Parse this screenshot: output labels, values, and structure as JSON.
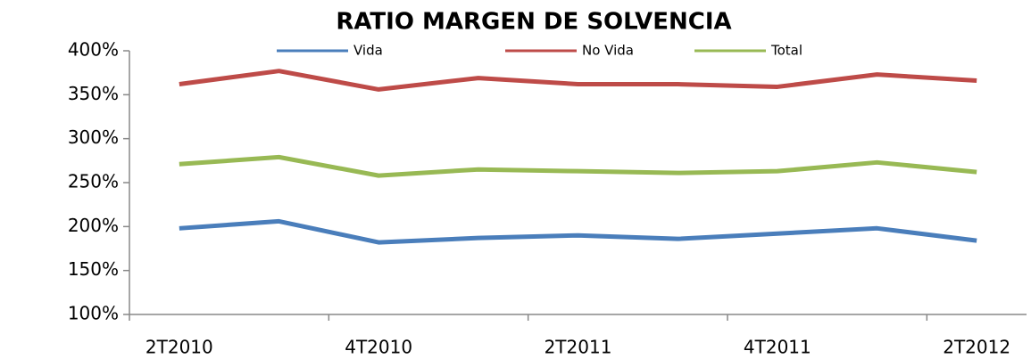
{
  "chart_data": {
    "type": "line",
    "title": "RATIO MARGEN DE SOLVENCIA",
    "categories": [
      "2T2010",
      null,
      "4T2010",
      null,
      "2T2011",
      null,
      "4T2011",
      null,
      "2T2012"
    ],
    "series": [
      {
        "name": "Vida",
        "color": "#4a7ebb",
        "values": [
          198,
          206,
          182,
          187,
          190,
          186,
          192,
          198,
          184
        ]
      },
      {
        "name": "No Vida",
        "color": "#be4b48",
        "values": [
          362,
          377,
          356,
          369,
          362,
          362,
          359,
          373,
          366
        ]
      },
      {
        "name": "Total",
        "color": "#98b954",
        "values": [
          271,
          279,
          258,
          265,
          263,
          261,
          263,
          273,
          262
        ]
      }
    ],
    "ylim": [
      100,
      400
    ],
    "yticks": [
      {
        "value": 100,
        "label": "100%"
      },
      {
        "value": 150,
        "label": "150%"
      },
      {
        "value": 200,
        "label": "200%"
      },
      {
        "value": 250,
        "label": "250%"
      },
      {
        "value": 300,
        "label": "300%"
      },
      {
        "value": 350,
        "label": "350%"
      },
      {
        "value": 400,
        "label": "400%"
      }
    ],
    "legend": "top",
    "grid": false
  }
}
